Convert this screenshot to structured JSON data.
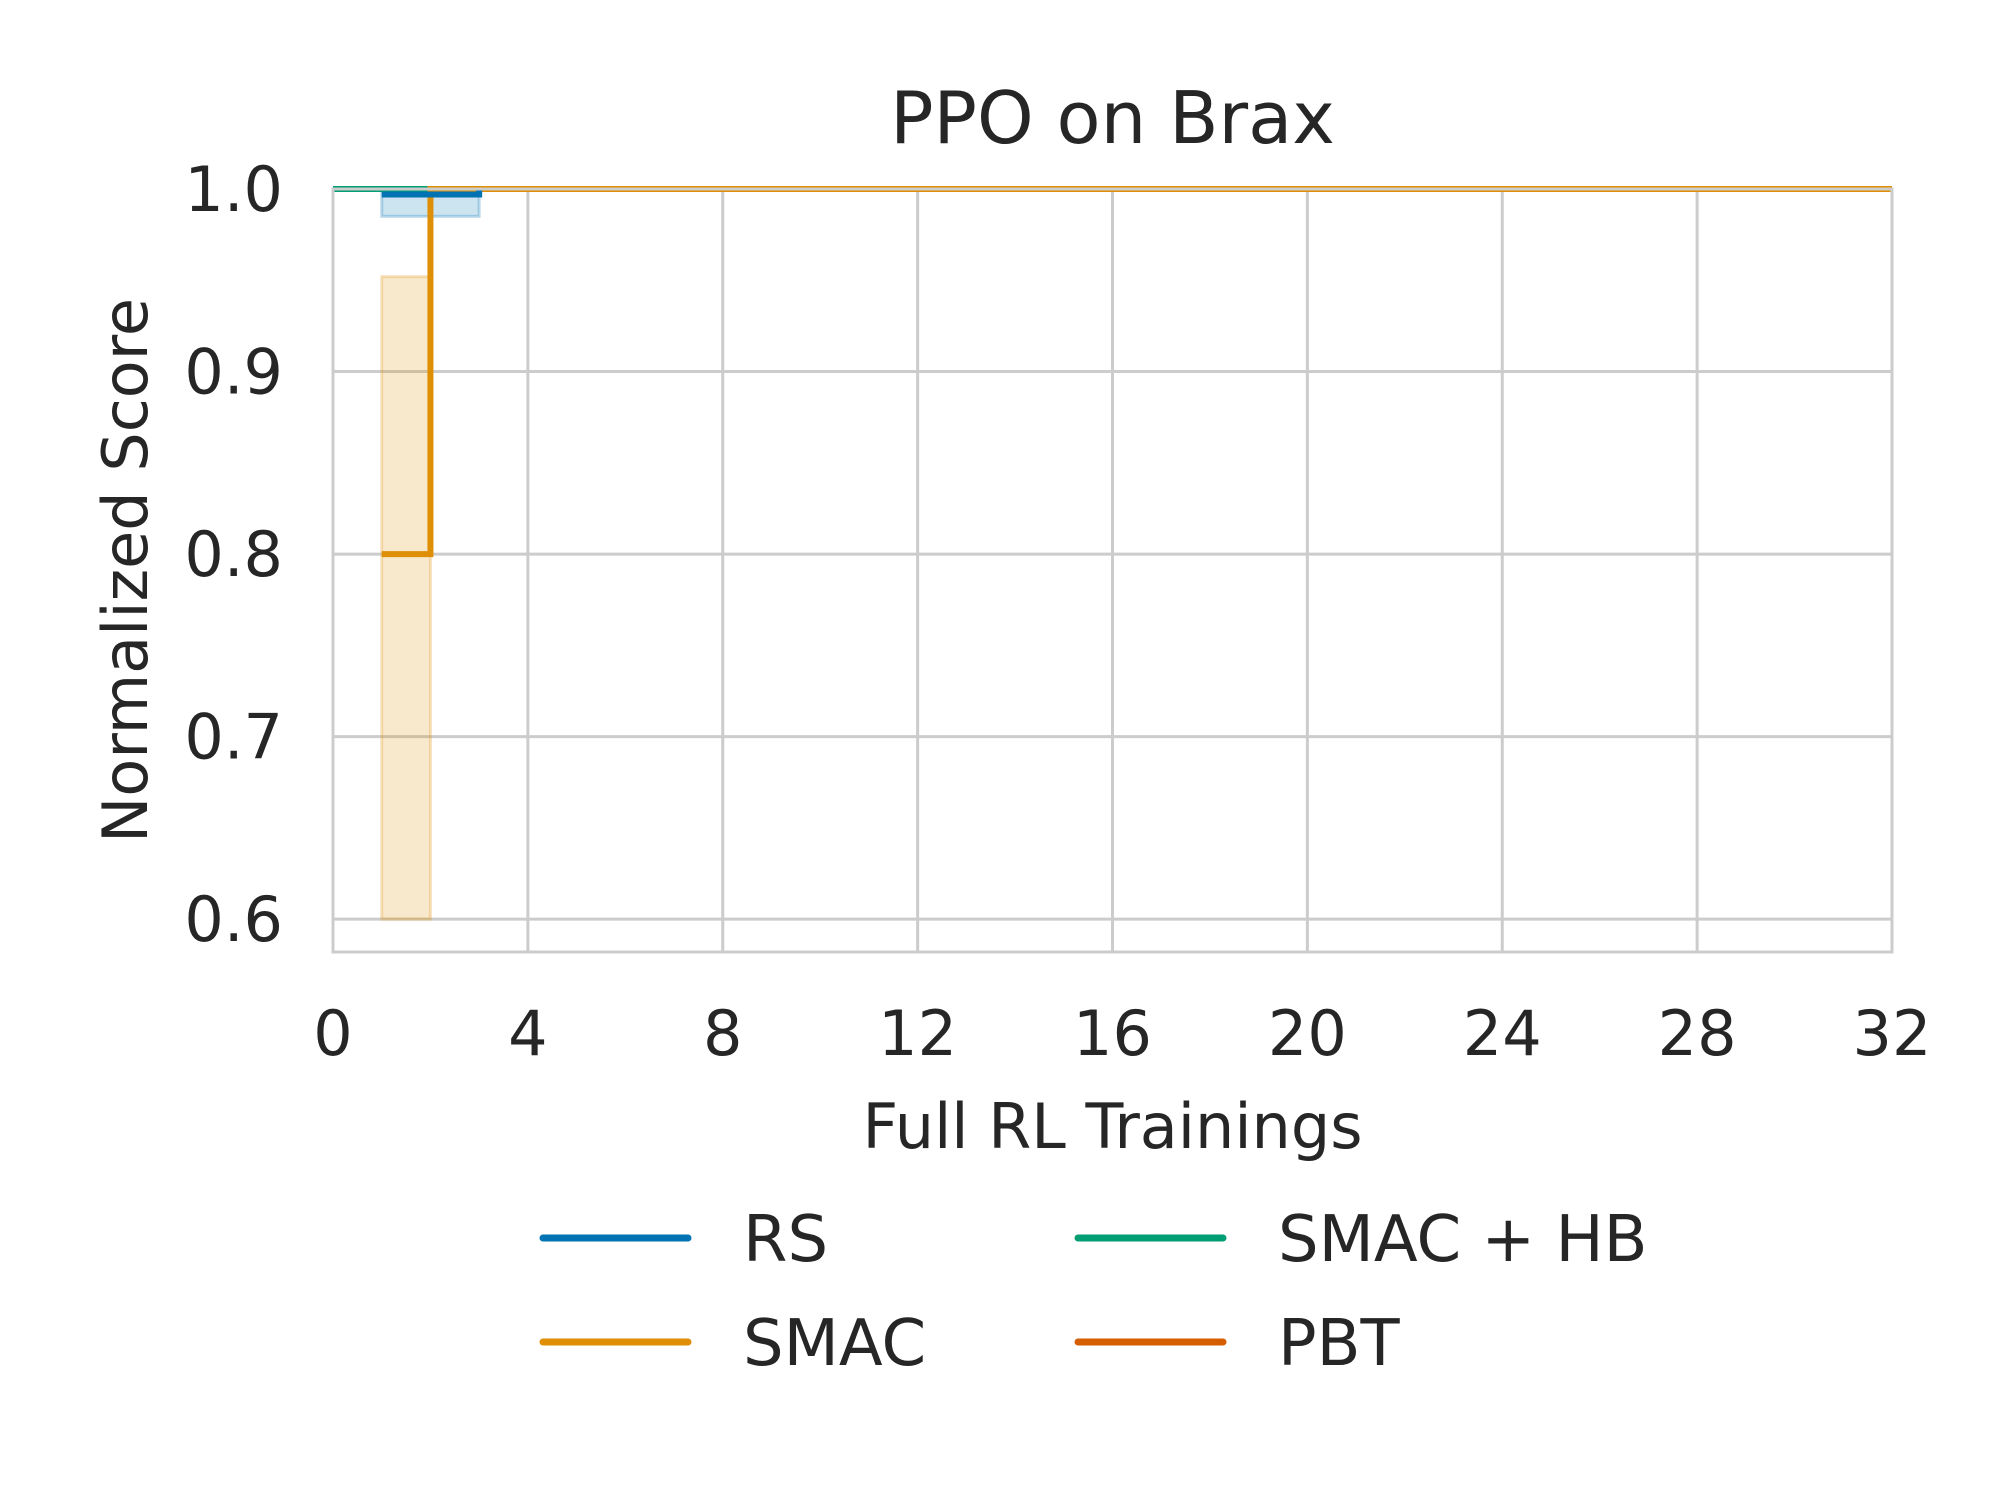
{
  "chart_data": {
    "type": "line",
    "title": "PPO on Brax",
    "xlabel": "Full RL Trainings",
    "ylabel": "Normalized Score",
    "xlim": [
      0,
      32
    ],
    "ylim": [
      0.582,
      1.0
    ],
    "xticks": [
      0,
      4,
      8,
      12,
      16,
      20,
      24,
      28,
      32
    ],
    "xtick_labels": [
      "0",
      "4",
      "8",
      "12",
      "16",
      "20",
      "24",
      "28",
      "32"
    ],
    "yticks": [
      0.6,
      0.7,
      0.8,
      0.9,
      1.0
    ],
    "ytick_labels": [
      "0.6",
      "0.7",
      "0.8",
      "0.9",
      "1.0"
    ],
    "grid": true,
    "legend_position": "bottom-center",
    "series": [
      {
        "name": "RS",
        "color": "#0173b2",
        "step": true,
        "x": [
          1,
          3
        ],
        "y": [
          0.997,
          1.0
        ],
        "band": {
          "x": [
            1,
            3
          ],
          "lower": [
            0.985,
            0.995
          ],
          "upper": [
            1.0,
            1.0
          ]
        }
      },
      {
        "name": "SMAC",
        "color": "#de8f05",
        "step": true,
        "x": [
          1,
          2,
          32
        ],
        "y": [
          0.8,
          1.0,
          1.0
        ],
        "band": {
          "x": [
            1,
            2
          ],
          "lower": [
            0.6,
            1.0
          ],
          "upper": [
            0.952,
            1.0
          ]
        }
      },
      {
        "name": "SMAC + HB",
        "color": "#029e73",
        "step": true,
        "x": [
          0,
          32
        ],
        "y": [
          1.0,
          1.0
        ]
      },
      {
        "name": "PBT",
        "color": "#d55e00",
        "step": true,
        "x": [
          0,
          32
        ],
        "y": [
          1.0,
          1.0
        ]
      }
    ]
  }
}
